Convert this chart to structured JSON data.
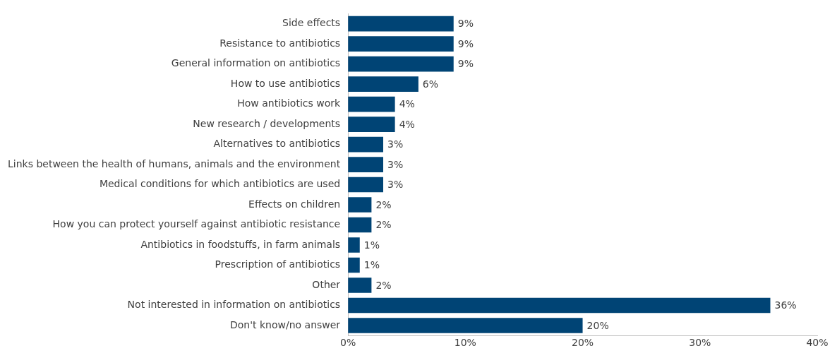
{
  "chart_data": {
    "type": "bar",
    "orientation": "horizontal",
    "categories": [
      "Side effects",
      "Resistance to antibiotics",
      "General information on antibiotics",
      "How to use antibiotics",
      "How antibiotics work",
      "New research / developments",
      "Alternatives to antibiotics",
      "Links between the health of humans, animals and the environment",
      "Medical conditions for which antibiotics are used",
      "Effects on children",
      "How you can protect yourself against antibiotic resistance",
      "Antibiotics in foodstuffs, in farm animals",
      "Prescription of antibiotics",
      "Other",
      "Not interested in information on antibiotics",
      "Don't know/no answer"
    ],
    "values": [
      9,
      9,
      9,
      6,
      4,
      4,
      3,
      3,
      3,
      2,
      2,
      1,
      1,
      2,
      36,
      20
    ],
    "value_labels": [
      "9%",
      "9%",
      "9%",
      "6%",
      "4%",
      "4%",
      "3%",
      "3%",
      "3%",
      "2%",
      "2%",
      "1%",
      "1%",
      "2%",
      "36%",
      "20%"
    ],
    "color": "#004475",
    "xlim": [
      0,
      40
    ],
    "xticks": [
      {
        "value": 0,
        "label": "0%"
      },
      {
        "value": 10,
        "label": "10%"
      },
      {
        "value": 20,
        "label": "20%"
      },
      {
        "value": 30,
        "label": "30%"
      },
      {
        "value": 40,
        "label": "40%"
      }
    ],
    "grid": false,
    "legend": false
  }
}
